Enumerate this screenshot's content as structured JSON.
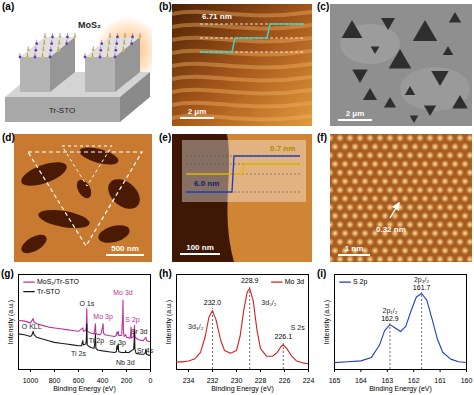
{
  "figure": {
    "panels": [
      {
        "label": "(a)",
        "texts": [
          "MoS₂",
          "Tr-STO"
        ]
      },
      {
        "label": "(b)",
        "texts": [
          "6.71 nm"
        ],
        "scale_bar": "2 μm"
      },
      {
        "label": "(c)",
        "scale_bar": "2 μm"
      },
      {
        "label": "(d)",
        "scale_bar": "500 nm"
      },
      {
        "label": "(e)",
        "texts": [
          "0.7 nm",
          "6.0 nm"
        ],
        "scale_bar": "100 nm"
      },
      {
        "label": "(f)",
        "texts": [
          "0.32 nm"
        ],
        "scale_bar": "1 nm"
      }
    ]
  },
  "chart_data": [
    {
      "label": "(g)",
      "type": "line",
      "x_label": "Binding Energy (eV)",
      "y_label": "Intensity (a.u.)",
      "xlim": [
        1100,
        0
      ],
      "xticks": [
        1000,
        800,
        600,
        400,
        200,
        0
      ],
      "ylim": [
        -12,
        100
      ],
      "tick_labels": "x",
      "legend": "upper left",
      "series": [
        {
          "name": "MoS₂/Tr-STO",
          "color": "#c0309a",
          "x": [
            1100,
            1050,
            1000,
            978,
            970,
            950,
            900,
            850,
            800,
            750,
            700,
            650,
            600,
            564,
            560,
            540,
            535,
            531,
            527,
            500,
            470,
            465,
            459,
            455,
            420,
            410,
            400,
            395,
            392,
            380,
            350,
            300,
            285,
            280,
            275,
            269,
            265,
            240,
            232,
            229,
            226,
            220,
            207,
            200,
            170,
            164,
            162,
            159,
            140,
            133,
            130,
            100,
            60,
            38,
            33,
            10,
            0
          ],
          "values": [
            46,
            45,
            43,
            48,
            44,
            42,
            40,
            38,
            37,
            36,
            35,
            34,
            33,
            37,
            33,
            34,
            37,
            60,
            33,
            31,
            30,
            34,
            42,
            30,
            29,
            31,
            38,
            42,
            31,
            29,
            28,
            27,
            28,
            32,
            30,
            33,
            28,
            28,
            52,
            70,
            34,
            27,
            29,
            26,
            25,
            33,
            38,
            25,
            27,
            40,
            26,
            23,
            22,
            26,
            22,
            21,
            21
          ]
        },
        {
          "name": "Tr-STO",
          "color": "#1a1a1a",
          "x": [
            1100,
            1050,
            1000,
            990,
            978,
            970,
            950,
            900,
            850,
            800,
            750,
            700,
            650,
            600,
            575,
            564,
            560,
            540,
            535,
            531,
            527,
            500,
            470,
            465,
            459,
            455,
            440,
            400,
            350,
            300,
            285,
            280,
            275,
            269,
            265,
            240,
            210,
            207,
            204,
            180,
            140,
            136,
            133,
            130,
            120,
            80,
            60,
            45,
            38,
            33,
            20,
            10,
            0
          ],
          "values": [
            30,
            29,
            27,
            28,
            33,
            29,
            26,
            24,
            22,
            20,
            19,
            18,
            17,
            16,
            16,
            22,
            17,
            18,
            22,
            42,
            17,
            14,
            13,
            18,
            30,
            13,
            11,
            10,
            9,
            8,
            9,
            16,
            12,
            18,
            9,
            8,
            8,
            10,
            8,
            8,
            12,
            22,
            34,
            12,
            7,
            6,
            6,
            7,
            12,
            6,
            5,
            5,
            5
          ]
        }
      ],
      "annotations": [
        {
          "text": "O 1s",
          "x": 531,
          "y": 66,
          "color": "#1a1a1a"
        },
        {
          "text": "O KLL",
          "x": 990,
          "y": 38,
          "color": "#1a1a1a"
        },
        {
          "text": "Ti 2s",
          "x": 600,
          "y": 6,
          "color": "#1a1a1a"
        },
        {
          "text": "Ti 2p",
          "x": 450,
          "y": 22,
          "color": "#1a1a1a"
        },
        {
          "text": "Sr 3p",
          "x": 275,
          "y": 20,
          "color": "#1a1a1a"
        },
        {
          "text": "Mo 3p",
          "x": 395,
          "y": 50,
          "color": "#c0309a"
        },
        {
          "text": "Mo 3d",
          "x": 229,
          "y": 78,
          "color": "#c0309a"
        },
        {
          "text": "S 2p",
          "x": 150,
          "y": 47,
          "color": "#c0309a"
        },
        {
          "text": "Sr 3d",
          "x": 95,
          "y": 32,
          "color": "#1a1a1a"
        },
        {
          "text": "Nb 3d",
          "x": 210,
          "y": -4,
          "color": "#1a1a1a"
        },
        {
          "text": "Sr 4s",
          "x": 45,
          "y": 10,
          "color": "#1a1a1a"
        }
      ]
    },
    {
      "label": "(h)",
      "type": "line",
      "x_label": "Binding Energy (eV)",
      "y_label": "Intensity (a.u.)",
      "xlim": [
        235,
        224
      ],
      "xticks": [
        234,
        232,
        230,
        228,
        226,
        224
      ],
      "ylim": [
        0,
        100
      ],
      "tick_labels": "x",
      "legend": "upper right",
      "series": [
        {
          "name": "Mo 3d",
          "color": "#d42020",
          "x": [
            235,
            234.5,
            234,
            233.5,
            233,
            232.6,
            232.3,
            232.0,
            231.7,
            231.3,
            231,
            230.5,
            230,
            229.7,
            229.4,
            229.1,
            228.9,
            228.6,
            228.3,
            228,
            227.5,
            227,
            226.6,
            226.3,
            226.1,
            225.8,
            225.4,
            225,
            224.5,
            224
          ],
          "values": [
            8,
            8,
            9,
            11,
            18,
            35,
            55,
            62,
            52,
            30,
            20,
            17,
            20,
            35,
            62,
            82,
            85,
            72,
            42,
            22,
            14,
            14,
            18,
            24,
            26,
            22,
            14,
            9,
            7,
            6
          ]
        }
      ],
      "peaks": [
        {
          "x": 232.0,
          "label": "232.0",
          "y": 70
        },
        {
          "x": 228.9,
          "label": "228.9",
          "y": 93
        },
        {
          "x": 226.1,
          "label": "226.1",
          "y": 34
        }
      ],
      "annotations": [
        {
          "text": "3d₃/₂",
          "x": 233.4,
          "y": 45,
          "color": "#1a1a1a"
        },
        {
          "text": "3d₅/₂",
          "x": 227.3,
          "y": 70,
          "color": "#1a1a1a"
        },
        {
          "text": "S 2s",
          "x": 224.9,
          "y": 44,
          "color": "#1a1a1a"
        }
      ]
    },
    {
      "label": "(i)",
      "type": "line",
      "x_label": "Binding Energy (eV)",
      "y_label": "Intensity (a.u.)",
      "xlim": [
        165,
        160
      ],
      "xticks": [
        165,
        164,
        163,
        162,
        161,
        160
      ],
      "ylim": [
        0,
        110
      ],
      "tick_labels": "x",
      "legend": "upper left",
      "series": [
        {
          "name": "S 2p",
          "color": "#1f3fbf",
          "x": [
            165,
            164.5,
            164,
            163.6,
            163.3,
            163.1,
            162.9,
            162.7,
            162.5,
            162.3,
            162.1,
            161.9,
            161.7,
            161.5,
            161.3,
            161.1,
            160.9,
            160.6,
            160.3,
            160
          ],
          "values": [
            8,
            9,
            10,
            14,
            28,
            45,
            52,
            48,
            44,
            50,
            68,
            84,
            88,
            80,
            58,
            35,
            20,
            12,
            9,
            8
          ]
        }
      ],
      "peaks": [
        {
          "x": 162.9,
          "label": "162.9",
          "y": 59
        },
        {
          "x": 161.7,
          "label": "161.7",
          "y": 95
        }
      ],
      "annotations": [
        {
          "text": "2p₁/₂",
          "x": 162.9,
          "y": 68,
          "color": "#1a1a1a"
        },
        {
          "text": "2p₃/₂",
          "x": 161.7,
          "y": 104,
          "color": "#1a1a1a"
        }
      ]
    }
  ]
}
